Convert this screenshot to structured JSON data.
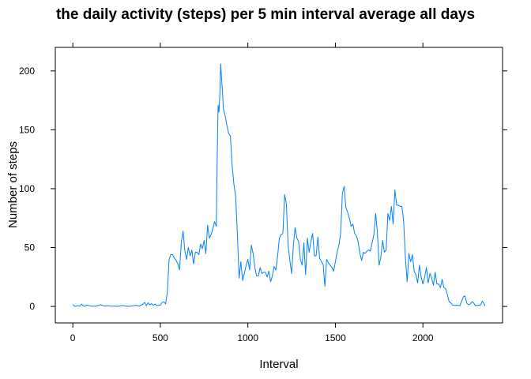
{
  "chart_data": {
    "type": "line",
    "title": "the daily activity (steps) per 5 min interval average all days",
    "xlabel": "Interval",
    "ylabel": "Number of steps",
    "xlim": [
      -100,
      2455
    ],
    "ylim": [
      -14,
      220
    ],
    "xticks": [
      0,
      500,
      1000,
      1500,
      2000
    ],
    "yticks": [
      0,
      50,
      100,
      150,
      200
    ],
    "grid": false,
    "series": [
      {
        "color": "#0080ff",
        "points": [
          [
            0,
            1.7
          ],
          [
            10,
            0.1
          ],
          [
            20,
            0.3
          ],
          [
            30,
            0.8
          ],
          [
            40,
            0
          ],
          [
            50,
            2.1
          ],
          [
            60,
            0.5
          ],
          [
            70,
            0.1
          ],
          [
            80,
            1.3
          ],
          [
            90,
            0.8
          ],
          [
            100,
            0.3
          ],
          [
            120,
            0.2
          ],
          [
            140,
            0.6
          ],
          [
            160,
            1.5
          ],
          [
            180,
            0.3
          ],
          [
            200,
            0.6
          ],
          [
            220,
            0.2
          ],
          [
            240,
            0.3
          ],
          [
            260,
            0.1
          ],
          [
            280,
            0.8
          ],
          [
            300,
            0.3
          ],
          [
            320,
            0.1
          ],
          [
            340,
            0.5
          ],
          [
            360,
            0.9
          ],
          [
            380,
            0.3
          ],
          [
            400,
            1.9
          ],
          [
            410,
            3.5
          ],
          [
            420,
            0.8
          ],
          [
            430,
            3.1
          ],
          [
            440,
            1.5
          ],
          [
            450,
            2.4
          ],
          [
            460,
            0.9
          ],
          [
            470,
            2.1
          ],
          [
            480,
            0.7
          ],
          [
            490,
            1.2
          ],
          [
            500,
            1.1
          ],
          [
            510,
            3.4
          ],
          [
            520,
            3.9
          ],
          [
            530,
            2.2
          ],
          [
            540,
            12
          ],
          [
            550,
            40
          ],
          [
            560,
            44
          ],
          [
            570,
            44
          ],
          [
            580,
            41
          ],
          [
            590,
            39
          ],
          [
            600,
            36
          ],
          [
            610,
            31
          ],
          [
            620,
            55
          ],
          [
            630,
            64
          ],
          [
            640,
            47
          ],
          [
            650,
            40
          ],
          [
            660,
            50
          ],
          [
            670,
            43
          ],
          [
            680,
            48
          ],
          [
            690,
            36
          ],
          [
            700,
            46
          ],
          [
            710,
            46
          ],
          [
            720,
            44
          ],
          [
            730,
            53
          ],
          [
            740,
            49
          ],
          [
            750,
            56
          ],
          [
            760,
            45
          ],
          [
            770,
            69
          ],
          [
            780,
            58
          ],
          [
            790,
            61
          ],
          [
            800,
            66
          ],
          [
            810,
            72
          ],
          [
            820,
            68
          ],
          [
            825,
            128
          ],
          [
            830,
            171
          ],
          [
            835,
            165
          ],
          [
            840,
            180
          ],
          [
            845,
            206
          ],
          [
            850,
            193
          ],
          [
            855,
            183
          ],
          [
            860,
            168
          ],
          [
            870,
            162
          ],
          [
            880,
            154
          ],
          [
            890,
            147
          ],
          [
            900,
            145
          ],
          [
            910,
            120
          ],
          [
            920,
            104
          ],
          [
            930,
            94
          ],
          [
            940,
            62
          ],
          [
            950,
            24
          ],
          [
            960,
            38
          ],
          [
            970,
            22
          ],
          [
            980,
            28
          ],
          [
            990,
            35
          ],
          [
            1000,
            40
          ],
          [
            1010,
            31
          ],
          [
            1020,
            52
          ],
          [
            1030,
            45
          ],
          [
            1040,
            33
          ],
          [
            1050,
            26
          ],
          [
            1060,
            26
          ],
          [
            1070,
            33
          ],
          [
            1080,
            28
          ],
          [
            1090,
            29
          ],
          [
            1100,
            29
          ],
          [
            1110,
            25
          ],
          [
            1120,
            30
          ],
          [
            1130,
            21
          ],
          [
            1140,
            26
          ],
          [
            1150,
            34
          ],
          [
            1160,
            31
          ],
          [
            1170,
            43
          ],
          [
            1180,
            58
          ],
          [
            1190,
            61
          ],
          [
            1200,
            62
          ],
          [
            1210,
            95
          ],
          [
            1220,
            87
          ],
          [
            1230,
            52
          ],
          [
            1240,
            39
          ],
          [
            1250,
            28
          ],
          [
            1260,
            52
          ],
          [
            1270,
            67
          ],
          [
            1280,
            58
          ],
          [
            1290,
            55
          ],
          [
            1300,
            40
          ],
          [
            1310,
            35
          ],
          [
            1320,
            54
          ],
          [
            1330,
            27
          ],
          [
            1340,
            58
          ],
          [
            1350,
            46
          ],
          [
            1360,
            55
          ],
          [
            1370,
            62
          ],
          [
            1380,
            43
          ],
          [
            1390,
            43
          ],
          [
            1400,
            59
          ],
          [
            1410,
            41
          ],
          [
            1420,
            38
          ],
          [
            1430,
            36
          ],
          [
            1440,
            17
          ],
          [
            1450,
            40
          ],
          [
            1460,
            37
          ],
          [
            1470,
            35
          ],
          [
            1480,
            33
          ],
          [
            1490,
            30
          ],
          [
            1500,
            38
          ],
          [
            1510,
            46
          ],
          [
            1520,
            52
          ],
          [
            1530,
            62
          ],
          [
            1540,
            96
          ],
          [
            1550,
            102
          ],
          [
            1560,
            84
          ],
          [
            1570,
            80
          ],
          [
            1580,
            75
          ],
          [
            1590,
            68
          ],
          [
            1600,
            70
          ],
          [
            1610,
            62
          ],
          [
            1620,
            60
          ],
          [
            1630,
            55
          ],
          [
            1640,
            45
          ],
          [
            1650,
            39
          ],
          [
            1660,
            46
          ],
          [
            1670,
            45
          ],
          [
            1680,
            47
          ],
          [
            1690,
            48
          ],
          [
            1700,
            47
          ],
          [
            1710,
            54
          ],
          [
            1720,
            61
          ],
          [
            1730,
            79
          ],
          [
            1740,
            63
          ],
          [
            1750,
            35
          ],
          [
            1760,
            42
          ],
          [
            1770,
            56
          ],
          [
            1780,
            46
          ],
          [
            1790,
            48
          ],
          [
            1800,
            79
          ],
          [
            1810,
            73
          ],
          [
            1820,
            85
          ],
          [
            1830,
            70
          ],
          [
            1840,
            99
          ],
          [
            1850,
            86
          ],
          [
            1860,
            86
          ],
          [
            1870,
            85
          ],
          [
            1880,
            85
          ],
          [
            1890,
            72
          ],
          [
            1900,
            41
          ],
          [
            1910,
            21
          ],
          [
            1920,
            45
          ],
          [
            1930,
            38
          ],
          [
            1940,
            44
          ],
          [
            1950,
            30
          ],
          [
            1960,
            27
          ],
          [
            1970,
            20
          ],
          [
            1980,
            35
          ],
          [
            1990,
            25
          ],
          [
            2000,
            19
          ],
          [
            2010,
            25
          ],
          [
            2020,
            33
          ],
          [
            2030,
            20
          ],
          [
            2040,
            28
          ],
          [
            2050,
            24
          ],
          [
            2060,
            18
          ],
          [
            2070,
            29
          ],
          [
            2080,
            19
          ],
          [
            2090,
            19
          ],
          [
            2100,
            16
          ],
          [
            2110,
            23
          ],
          [
            2120,
            16
          ],
          [
            2130,
            15
          ],
          [
            2140,
            10
          ],
          [
            2150,
            4
          ],
          [
            2160,
            3
          ],
          [
            2170,
            1
          ],
          [
            2180,
            1
          ],
          [
            2190,
            1
          ],
          [
            2200,
            1
          ],
          [
            2210,
            0.5
          ],
          [
            2220,
            4
          ],
          [
            2230,
            8
          ],
          [
            2240,
            9
          ],
          [
            2250,
            3
          ],
          [
            2260,
            1.5
          ],
          [
            2270,
            2
          ],
          [
            2280,
            4
          ],
          [
            2290,
            3
          ],
          [
            2300,
            0.5
          ],
          [
            2310,
            1
          ],
          [
            2320,
            1
          ],
          [
            2330,
            1.5
          ],
          [
            2340,
            4.5
          ],
          [
            2350,
            2
          ],
          [
            2355,
            0.5
          ]
        ]
      }
    ]
  }
}
